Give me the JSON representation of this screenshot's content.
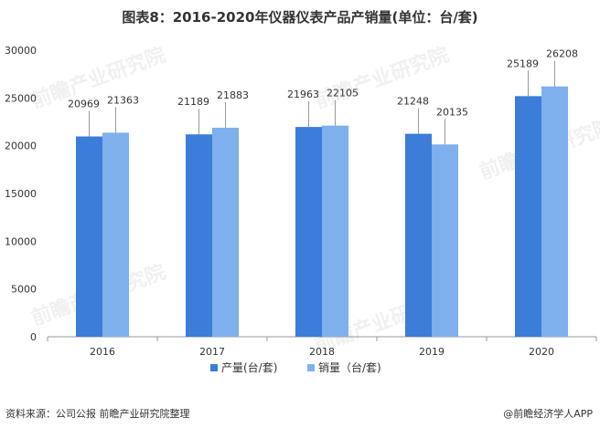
{
  "title": "图表8：2016-2020年仪器仪表产品产销量(单位：台/套)",
  "footer": {
    "source": "资料来源：公司公报 前瞻产业研究院整理",
    "brand": "@前瞻经济学人APP"
  },
  "watermark": "前瞻产业研究院",
  "colors": {
    "production": "#3b7dd8",
    "sales": "#7fb0ee",
    "axis": "#999999",
    "label_line": "#9a9a9a"
  },
  "chart_data": {
    "type": "bar",
    "categories": [
      "2016",
      "2017",
      "2018",
      "2019",
      "2020"
    ],
    "series": [
      {
        "name": "产量(台/套)",
        "values": [
          20969,
          21189,
          21963,
          21248,
          25189
        ]
      },
      {
        "name": "销量（台/套)",
        "values": [
          21363,
          21883,
          22105,
          20135,
          26208
        ]
      }
    ],
    "ylim": [
      0,
      30000
    ],
    "yticks": [
      "0",
      "5000",
      "10000",
      "15000",
      "20000",
      "25000",
      "30000"
    ],
    "legend_position": "bottom",
    "grid": false
  }
}
